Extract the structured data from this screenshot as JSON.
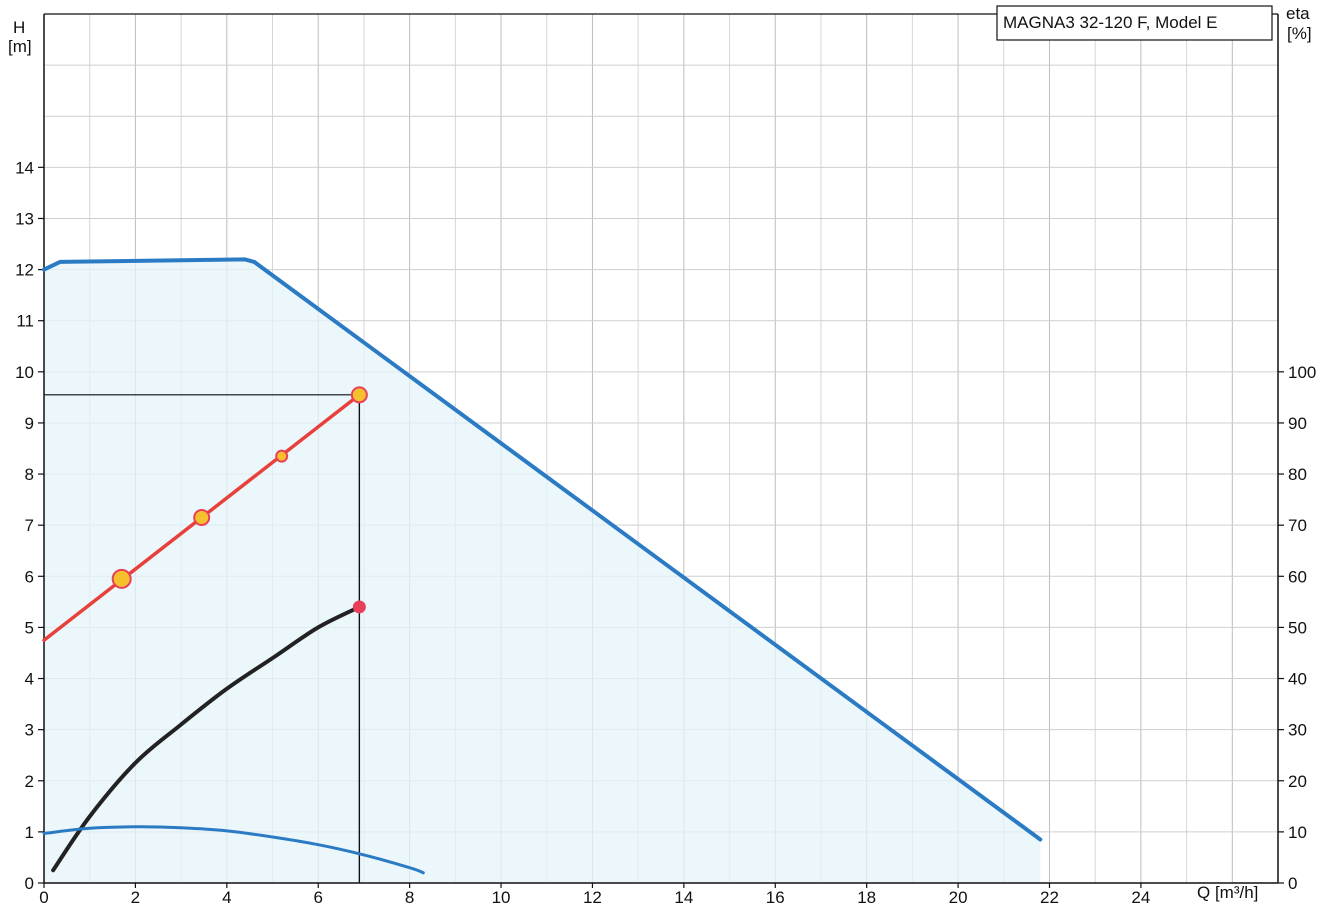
{
  "chart_data": {
    "type": "line",
    "model_label": "MAGNA3 32-120 F, Model E",
    "left_axis": {
      "title_line1": "H",
      "title_line2": "[m]",
      "range": [
        0,
        17
      ],
      "ticks": [
        0,
        1,
        2,
        3,
        4,
        5,
        6,
        7,
        8,
        9,
        10,
        11,
        12,
        13,
        14
      ]
    },
    "right_axis": {
      "title_line1": "eta",
      "title_line2": "[%]",
      "range": [
        0,
        100
      ],
      "ticks": [
        0,
        10,
        20,
        30,
        40,
        50,
        60,
        70,
        80,
        90,
        100
      ]
    },
    "x_axis": {
      "title": "Q [m³/h]",
      "range": [
        0,
        27
      ],
      "ticks": [
        0,
        2,
        4,
        6,
        8,
        10,
        12,
        14,
        16,
        18,
        20,
        22,
        24
      ]
    },
    "grid": true,
    "series": [
      {
        "name": "",
        "axis": "left",
        "color": "#2b7bc4",
        "points": [
          [
            0,
            12.0
          ],
          [
            0.35,
            12.15
          ],
          [
            4.4,
            12.2
          ],
          [
            4.6,
            12.15
          ],
          [
            21.8,
            0.85
          ]
        ]
      },
      {
        "name": "",
        "axis": "left",
        "color": "#e8403a",
        "points": [
          [
            0,
            4.75
          ],
          [
            6.9,
            9.55
          ]
        ]
      },
      {
        "name": "",
        "axis": "right",
        "color": "#222222",
        "points": [
          [
            0.2,
            2.5
          ],
          [
            1,
            13
          ],
          [
            2,
            23.5
          ],
          [
            3,
            31
          ],
          [
            4,
            38
          ],
          [
            5,
            44
          ],
          [
            6,
            50
          ],
          [
            6.9,
            54
          ]
        ]
      },
      {
        "name": "",
        "axis": "left",
        "color": "#2b7bc4",
        "points": [
          [
            0,
            0.97
          ],
          [
            1,
            1.07
          ],
          [
            2,
            1.1
          ],
          [
            3,
            1.08
          ],
          [
            4,
            1.02
          ],
          [
            5,
            0.9
          ],
          [
            6,
            0.75
          ],
          [
            7,
            0.55
          ],
          [
            8,
            0.3
          ],
          [
            8.3,
            0.2
          ]
        ]
      }
    ],
    "markers": [
      {
        "x": 1.7,
        "y": 5.95,
        "axis": "left",
        "size": "large"
      },
      {
        "x": 3.45,
        "y": 7.15,
        "axis": "left",
        "size": "medium"
      },
      {
        "x": 5.2,
        "y": 8.35,
        "axis": "left",
        "size": "small"
      },
      {
        "x": 6.9,
        "y": 9.55,
        "axis": "left",
        "size": "medium"
      },
      {
        "x": 6.9,
        "y": 54,
        "axis": "right",
        "size": "dot"
      }
    ],
    "operating_point": {
      "q": 6.9,
      "h": 9.55
    },
    "shaded_region": true
  }
}
